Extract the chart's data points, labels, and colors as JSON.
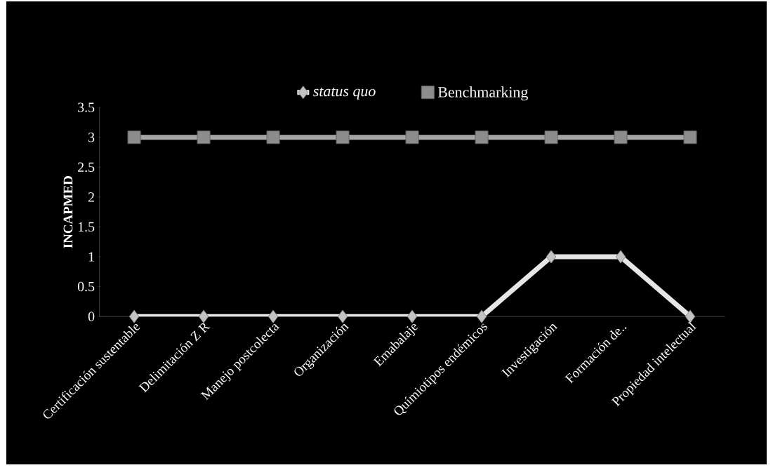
{
  "chart_data": {
    "type": "line",
    "ylabel": "INCAPMED",
    "categories": [
      "Certificación sustentable",
      "Delimitación Z R",
      "Manejo postcolecta",
      "Organización",
      "Emabalaje",
      "Químiotipos endémicos",
      "Investigación",
      "Formación de..",
      "Propiedad intelectual"
    ],
    "series": [
      {
        "name": "status quo",
        "color": "#e6e6e6",
        "marker": "diamond",
        "values": [
          0,
          0,
          0,
          0,
          0,
          0,
          1,
          1,
          0
        ]
      },
      {
        "name": "Benchmarking",
        "color": "#a6a6a6",
        "marker": "square",
        "values": [
          3,
          3,
          3,
          3,
          3,
          3,
          3,
          3,
          3
        ]
      }
    ],
    "ylim": [
      0,
      3.5
    ],
    "yticks": [
      0,
      0.5,
      1,
      1.5,
      2,
      2.5,
      3,
      3.5
    ],
    "legend": "top",
    "grid": false,
    "line_style": "solid"
  }
}
